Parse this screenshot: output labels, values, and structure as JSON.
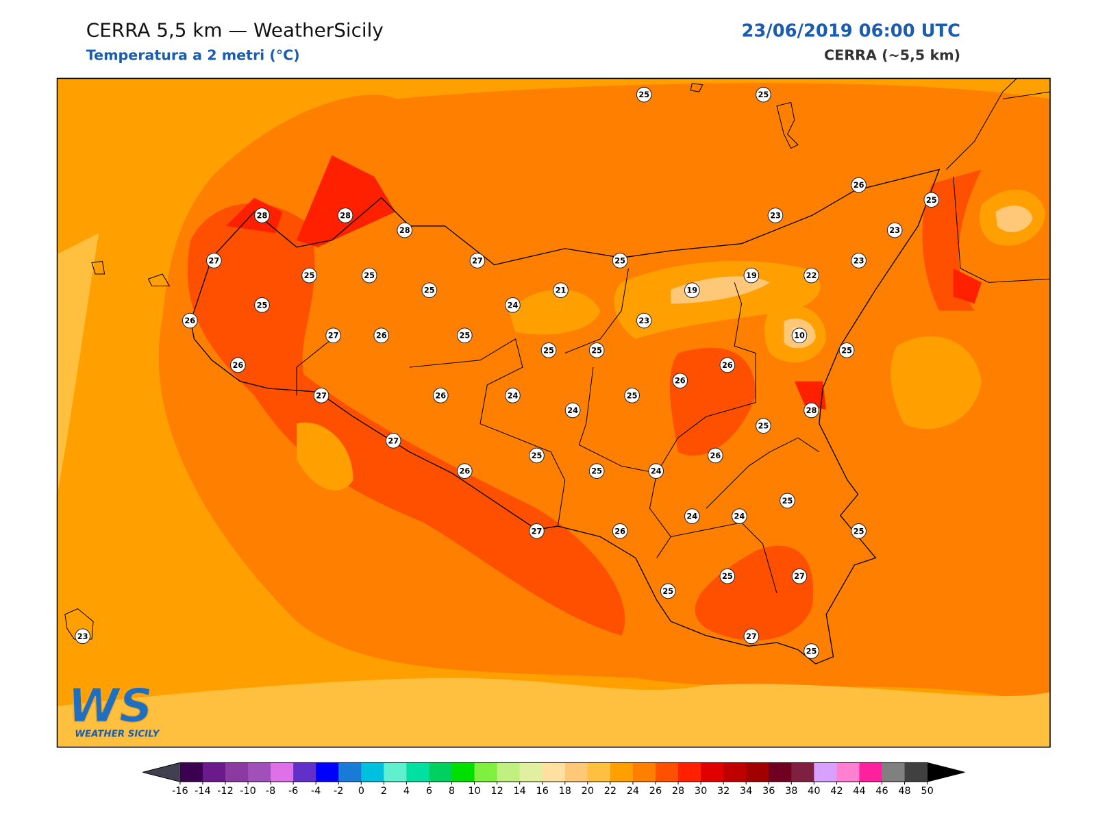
{
  "header": {
    "title": "CERRA 5,5 km — WeatherSicily",
    "subtitle": "Temperatura a 2 metri (°C)",
    "date": "23/06/2019 06:00 UTC",
    "model": "CERRA (~5,5 km)"
  },
  "stations": {
    "values": [
      25,
      25,
      26,
      25,
      28,
      28,
      28,
      23,
      23,
      27,
      27,
      25,
      23,
      25,
      25,
      19,
      22,
      25,
      21,
      19,
      25,
      24,
      26,
      23,
      27,
      26,
      25,
      10,
      25,
      25,
      25,
      26,
      26,
      26,
      27,
      26,
      24,
      25,
      24,
      28,
      25,
      27,
      25,
      26,
      26,
      25,
      24,
      25,
      24,
      24,
      27,
      26,
      25,
      25,
      27,
      25,
      27,
      25,
      23
    ]
  },
  "colorbar": {
    "ticks": [
      -16,
      -14,
      -12,
      -10,
      -8,
      -6,
      -4,
      -2,
      0,
      2,
      4,
      6,
      8,
      10,
      12,
      14,
      16,
      18,
      20,
      22,
      24,
      26,
      28,
      30,
      32,
      34,
      36,
      38,
      40,
      42,
      44,
      46,
      48,
      50
    ],
    "colors": [
      "#3c0050",
      "#6a1a8a",
      "#8a3aa0",
      "#a050b8",
      "#e070e8",
      "#6030c8",
      "#0000ff",
      "#1a7ad8",
      "#00c0e0",
      "#60f0d0",
      "#00e0a0",
      "#00d060",
      "#00e000",
      "#80f040",
      "#c0f080",
      "#e0f0a0",
      "#ffe0a0",
      "#ffc878",
      "#ffc040",
      "#ffa000",
      "#ff8000",
      "#ff5000",
      "#ff2000",
      "#e00000",
      "#c00000",
      "#a00000",
      "#700020",
      "#802040",
      "#d8a0ff",
      "#ff80d0",
      "#ff20a0",
      "#808080",
      "#404040"
    ],
    "under": "#404050",
    "over": "#000000"
  },
  "logo": {
    "mark": "WS",
    "name": "WEATHER SICILY"
  }
}
